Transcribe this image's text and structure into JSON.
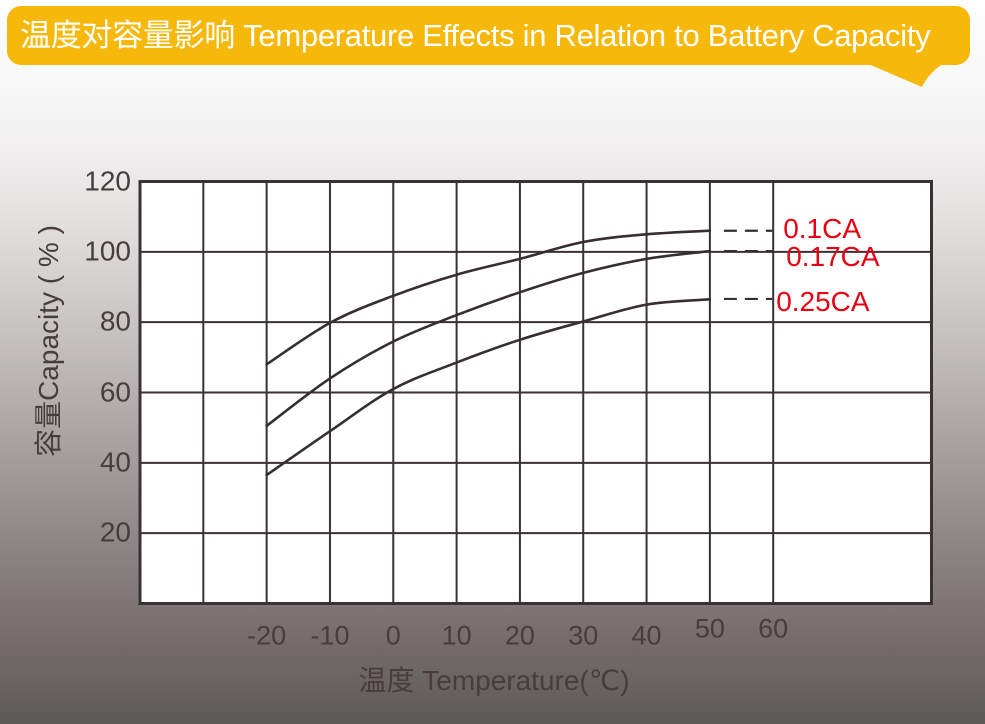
{
  "header": {
    "title": "温度对容量影响 Temperature Effects in Relation to Battery Capacity"
  },
  "colors": {
    "banner_background": "#F7B80C",
    "banner_text": "#FFFFFF",
    "grid_line": "#3A3133",
    "curve_line": "#362E2F",
    "series_label": "#E60012",
    "tick_text": "#473D3D",
    "plot_background": "#FFFFFF"
  },
  "chart_data": {
    "type": "line",
    "title": "温度对容量影响 Temperature Effects in Relation to Battery Capacity",
    "xlabel": "温度 Temperature(℃)",
    "ylabel": "容量Capacity ( % )",
    "xlim": [
      -40,
      85
    ],
    "ylim": [
      0,
      120
    ],
    "grid": true,
    "x_gridlines": [
      -30,
      -20,
      -10,
      0,
      10,
      20,
      30,
      40,
      50,
      60
    ],
    "y_gridlines": [
      20,
      40,
      60,
      80,
      100
    ],
    "x_ticks": [
      {
        "value": -20,
        "label": "-20"
      },
      {
        "value": -10,
        "label": "-10"
      },
      {
        "value": 0,
        "label": "0"
      },
      {
        "value": 10,
        "label": "10"
      },
      {
        "value": 20,
        "label": "20"
      },
      {
        "value": 30,
        "label": "30"
      },
      {
        "value": 40,
        "label": "40"
      },
      {
        "value": 50,
        "label": "50",
        "dy": -7
      },
      {
        "value": 60,
        "label": "60",
        "dy": -7
      }
    ],
    "y_ticks": [
      {
        "value": 120,
        "label": "120"
      },
      {
        "value": 100,
        "label": "100"
      },
      {
        "value": 80,
        "label": "80"
      },
      {
        "value": 60,
        "label": "60"
      },
      {
        "value": 40,
        "label": "40"
      },
      {
        "value": 20,
        "label": "20"
      }
    ],
    "legend_position": "right-inline",
    "series": [
      {
        "name": "0.1CA",
        "points": [
          [
            -20,
            68
          ],
          [
            -10,
            79.8
          ],
          [
            0,
            87.5
          ],
          [
            10,
            93.5
          ],
          [
            20,
            98
          ],
          [
            30,
            102.8
          ],
          [
            40,
            105
          ],
          [
            50,
            106
          ]
        ],
        "dash": {
          "from": 50,
          "to": 60,
          "at": 106
        },
        "label_offset": [
          10,
          -2
        ]
      },
      {
        "name": "0.17CA",
        "points": [
          [
            -20,
            50.5
          ],
          [
            -10,
            64
          ],
          [
            0,
            74.5
          ],
          [
            10,
            82
          ],
          [
            20,
            88.5
          ],
          [
            30,
            94
          ],
          [
            40,
            98
          ],
          [
            50,
            100.2
          ]
        ],
        "dash": {
          "from": 50,
          "to": 60,
          "at": 100.2
        },
        "label_offset": [
          13,
          6
        ]
      },
      {
        "name": "0.25CA",
        "points": [
          [
            -20,
            36.5
          ],
          [
            -10,
            49
          ],
          [
            0,
            61
          ],
          [
            10,
            68.5
          ],
          [
            20,
            75
          ],
          [
            30,
            80.2
          ],
          [
            40,
            85
          ],
          [
            50,
            86.5
          ]
        ],
        "dash": {
          "from": 50,
          "to": 60,
          "at": 86.6
        },
        "label_offset": [
          3,
          3
        ]
      }
    ]
  }
}
